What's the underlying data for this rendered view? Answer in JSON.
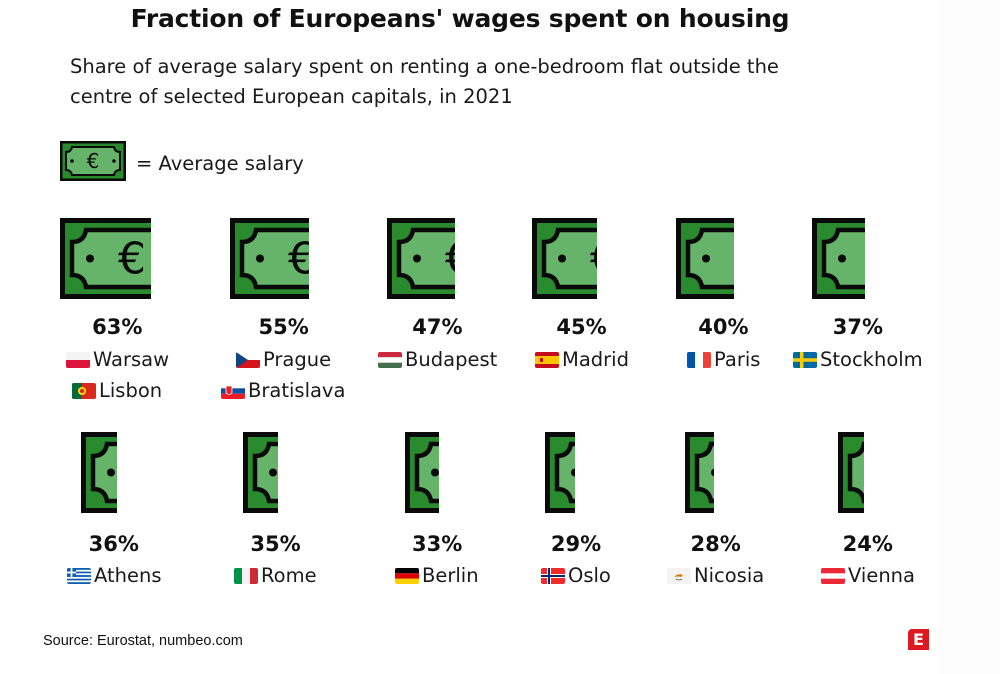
{
  "title": "Fraction of Europeans' wages spent on housing",
  "subtitle_line1": "Share of average salary spent on renting a one-bedroom flat outside the",
  "subtitle_line2": "centre of selected European capitals, in 2021",
  "legend": {
    "icon": "euro-banknote-icon",
    "label": "= Average salary"
  },
  "colors": {
    "bill_dark": "#2a8a2e",
    "bill_light": "#66b46a",
    "bill_outline": "#0a0a0a",
    "logo": "#dd1a22"
  },
  "chart_data": {
    "type": "pictogram",
    "title": "Fraction of Europeans' wages spent on housing",
    "subtitle": "Share of average salary spent on renting a one-bedroom flat outside the centre of selected European capitals, in 2021",
    "unit": "% of average salary",
    "icon_meaning": "One full banknote = Average salary",
    "categories": [
      "Warsaw / Lisbon",
      "Prague / Bratislava",
      "Budapest",
      "Madrid",
      "Paris",
      "Stockholm",
      "Athens",
      "Rome",
      "Berlin",
      "Oslo",
      "Nicosia",
      "Vienna"
    ],
    "values": [
      63,
      55,
      47,
      45,
      40,
      37,
      36,
      35,
      33,
      29,
      28,
      24
    ],
    "items": [
      {
        "value": 63,
        "label": "63%",
        "cities": [
          {
            "name": "Warsaw",
            "flag": "poland"
          },
          {
            "name": "Lisbon",
            "flag": "portugal"
          }
        ]
      },
      {
        "value": 55,
        "label": "55%",
        "cities": [
          {
            "name": "Prague",
            "flag": "czechia"
          },
          {
            "name": "Bratislava",
            "flag": "slovakia"
          }
        ]
      },
      {
        "value": 47,
        "label": "47%",
        "cities": [
          {
            "name": "Budapest",
            "flag": "hungary"
          }
        ]
      },
      {
        "value": 45,
        "label": "45%",
        "cities": [
          {
            "name": "Madrid",
            "flag": "spain"
          }
        ]
      },
      {
        "value": 40,
        "label": "40%",
        "cities": [
          {
            "name": "Paris",
            "flag": "france"
          }
        ]
      },
      {
        "value": 37,
        "label": "37%",
        "cities": [
          {
            "name": "Stockholm",
            "flag": "sweden"
          }
        ]
      },
      {
        "value": 36,
        "label": "36%",
        "cities": [
          {
            "name": "Athens",
            "flag": "greece"
          }
        ]
      },
      {
        "value": 35,
        "label": "35%",
        "cities": [
          {
            "name": "Rome",
            "flag": "italy"
          }
        ]
      },
      {
        "value": 33,
        "label": "33%",
        "cities": [
          {
            "name": "Berlin",
            "flag": "germany"
          }
        ]
      },
      {
        "value": 29,
        "label": "29%",
        "cities": [
          {
            "name": "Oslo",
            "flag": "norway"
          }
        ]
      },
      {
        "value": 28,
        "label": "28%",
        "cities": [
          {
            "name": "Nicosia",
            "flag": "cyprus"
          }
        ]
      },
      {
        "value": 24,
        "label": "24%",
        "cities": [
          {
            "name": "Vienna",
            "flag": "austria"
          }
        ]
      }
    ]
  },
  "footer": {
    "source": "Source: Eurostat, numbeo.com",
    "logo_letter": "E"
  }
}
